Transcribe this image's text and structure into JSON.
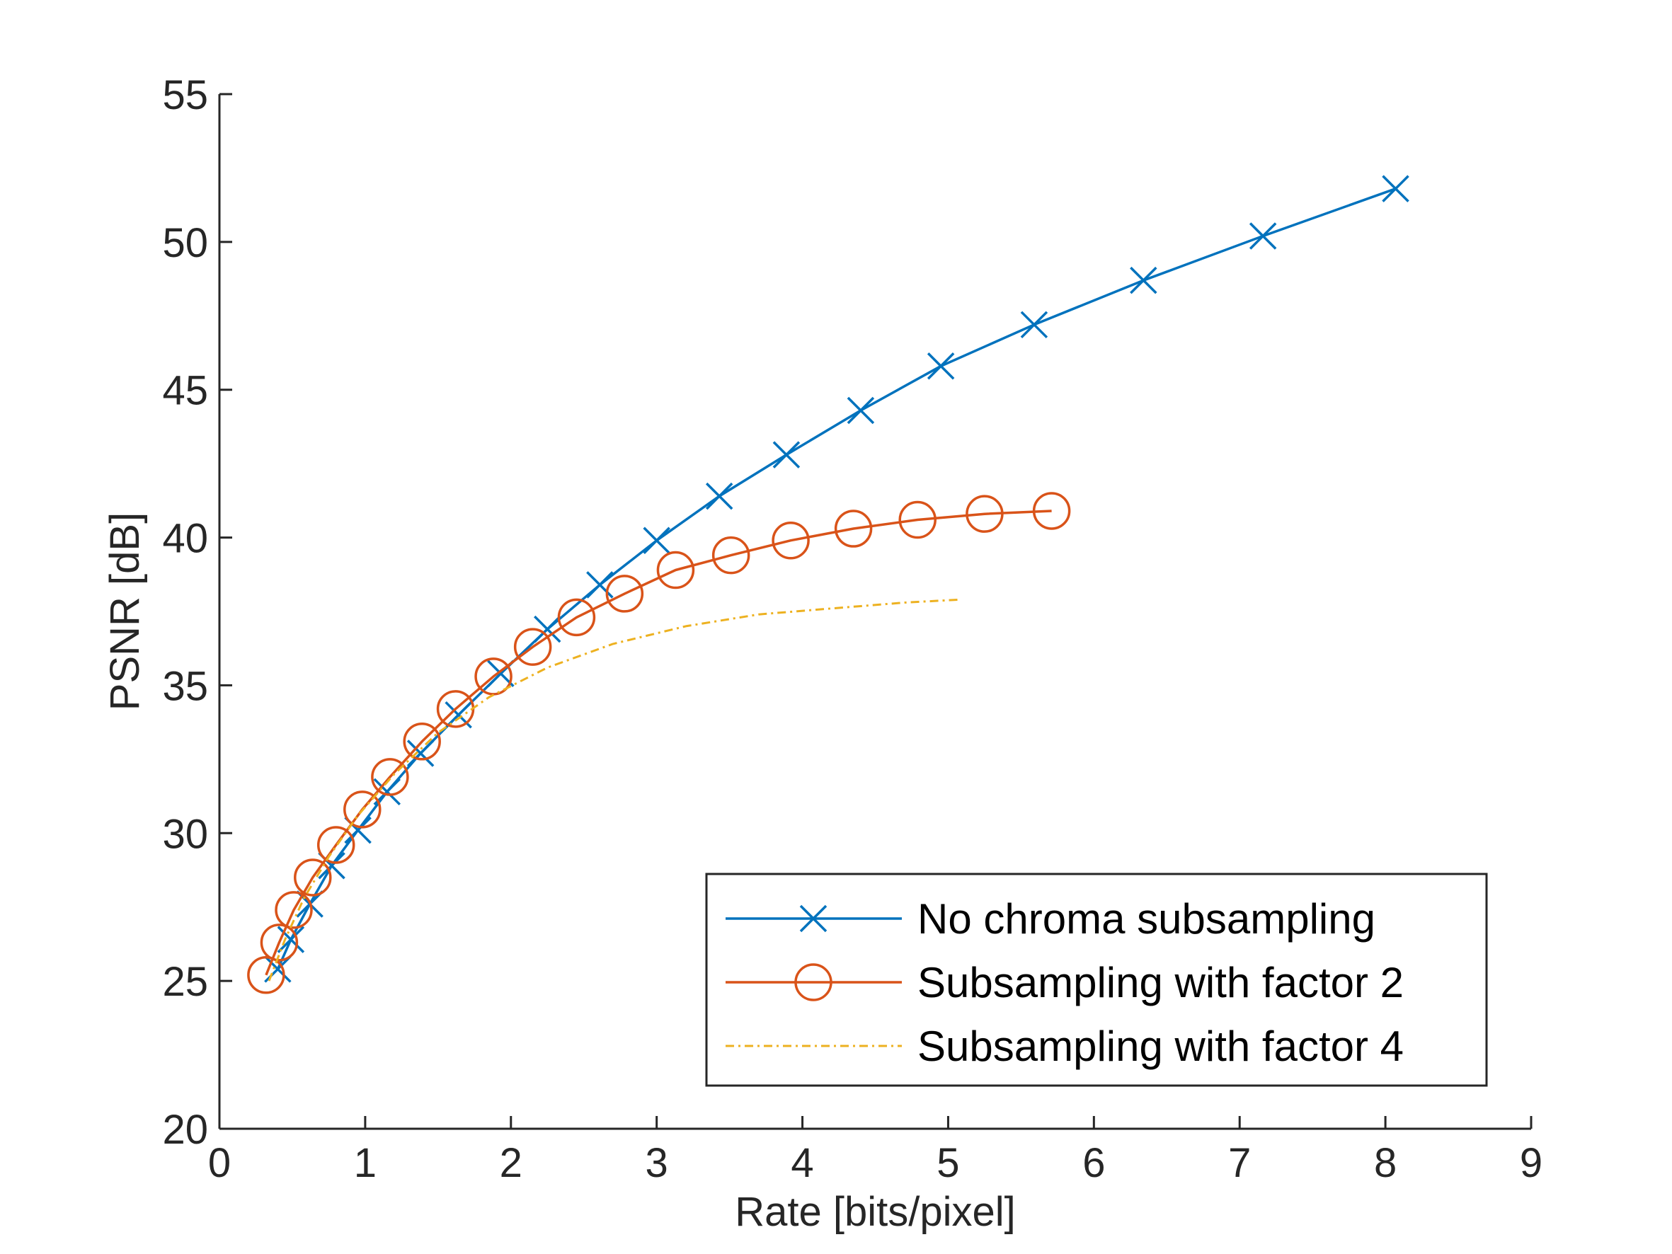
{
  "chart_data": {
    "type": "line",
    "xlabel": "Rate [bits/pixel]",
    "ylabel": "PSNR [dB]",
    "xlim": [
      0,
      9
    ],
    "ylim": [
      20,
      55
    ],
    "xticks": [
      0,
      1,
      2,
      3,
      4,
      5,
      6,
      7,
      8,
      9
    ],
    "yticks": [
      20,
      25,
      30,
      35,
      40,
      45,
      50,
      55
    ],
    "grid": false,
    "legend_position": "bottom-right",
    "series": [
      {
        "name": "No chroma subsampling",
        "color": "#0072BD",
        "marker": "x",
        "line": "solid",
        "x": [
          0.4,
          0.49,
          0.62,
          0.77,
          0.95,
          1.15,
          1.38,
          1.64,
          1.93,
          2.25,
          2.61,
          3.0,
          3.43,
          3.89,
          4.4,
          4.95,
          5.59,
          6.34,
          7.16,
          8.07
        ],
        "y": [
          25.4,
          26.4,
          27.6,
          28.9,
          30.1,
          31.4,
          32.7,
          34.0,
          35.4,
          36.9,
          38.4,
          39.9,
          41.4,
          42.8,
          44.3,
          45.8,
          47.2,
          48.7,
          50.2,
          51.8
        ]
      },
      {
        "name": "Subsampling with factor 2",
        "color": "#D95319",
        "marker": "o",
        "line": "solid",
        "x": [
          0.32,
          0.41,
          0.51,
          0.64,
          0.8,
          0.98,
          1.17,
          1.39,
          1.62,
          1.88,
          2.15,
          2.45,
          2.78,
          3.13,
          3.51,
          3.92,
          4.35,
          4.79,
          5.25,
          5.71
        ],
        "y": [
          25.2,
          26.3,
          27.4,
          28.5,
          29.6,
          30.8,
          31.9,
          33.1,
          34.2,
          35.3,
          36.3,
          37.3,
          38.1,
          38.9,
          39.4,
          39.9,
          40.3,
          40.6,
          40.8,
          40.9
        ]
      },
      {
        "name": "Subsampling with factor 4",
        "color": "#EDB120",
        "marker": "none",
        "line": "dash-dot",
        "x": [
          0.34,
          0.45,
          0.58,
          0.75,
          0.95,
          1.2,
          1.5,
          1.85,
          2.25,
          2.7,
          3.2,
          3.7,
          4.2,
          4.7,
          5.08
        ],
        "y": [
          25.0,
          26.4,
          27.8,
          29.2,
          30.6,
          32.0,
          33.4,
          34.6,
          35.6,
          36.4,
          37.0,
          37.4,
          37.6,
          37.8,
          37.9
        ]
      }
    ]
  }
}
